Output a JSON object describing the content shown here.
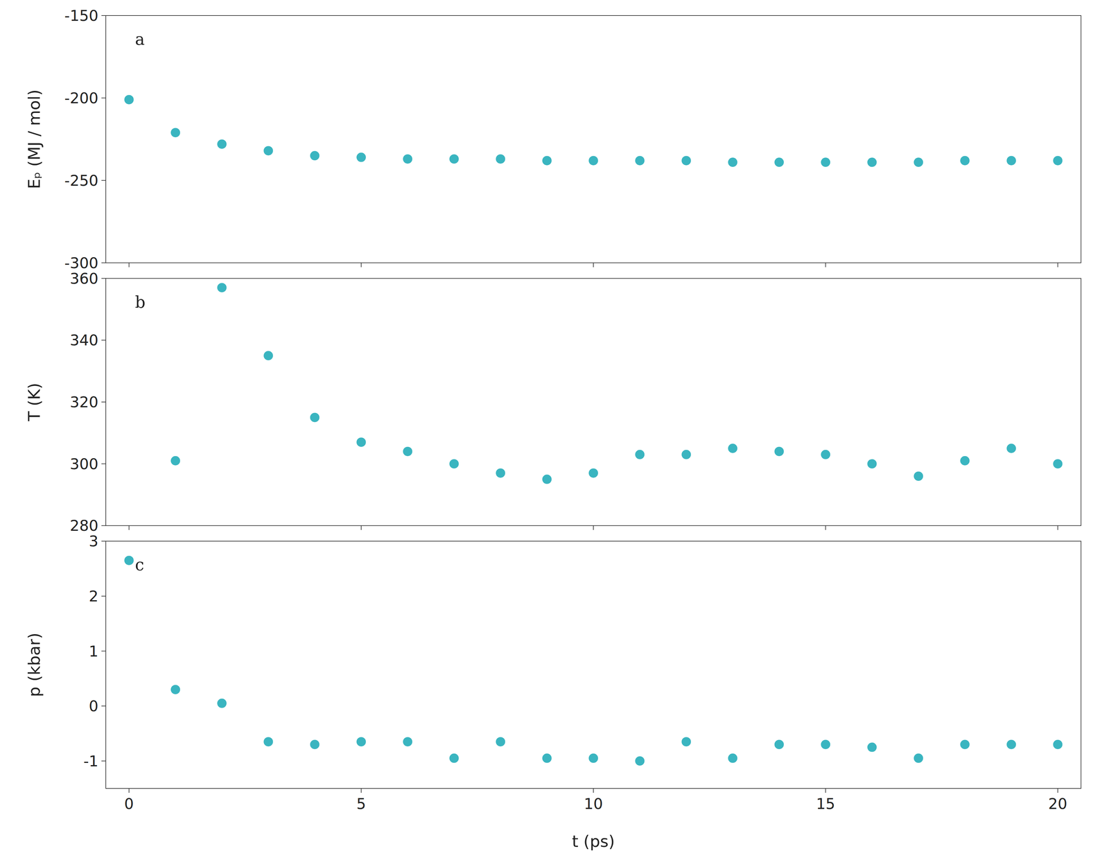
{
  "chart_data": [
    {
      "type": "scatter",
      "ylabel": "Eₚ (MJ / mol)",
      "annotations": [
        "a"
      ],
      "x": [
        0,
        1,
        2,
        3,
        4,
        5,
        6,
        7,
        8,
        9,
        10,
        11,
        12,
        13,
        14,
        15,
        16,
        17,
        18,
        19,
        20
      ],
      "values": [
        -201,
        -221,
        -228,
        -232,
        -235,
        -236,
        -237,
        -237,
        -237,
        -238,
        -238,
        -238,
        -238,
        -239,
        -239,
        -239,
        -239,
        -239,
        -238,
        -238,
        -238
      ],
      "color": "#3ab5c0",
      "xlim": [
        -0.5,
        20.5
      ],
      "xticks": [
        0,
        5,
        10,
        15,
        20
      ],
      "ylim": [
        -300,
        -150
      ],
      "yticks": [
        -300,
        -250,
        -200,
        -150
      ],
      "grid": false,
      "tick_labels": "y"
    },
    {
      "type": "scatter",
      "ylabel": "T (K)",
      "annotations": [
        "b"
      ],
      "x": [
        1,
        2,
        3,
        4,
        5,
        6,
        7,
        8,
        9,
        10,
        11,
        12,
        13,
        14,
        15,
        16,
        17,
        18,
        19,
        20
      ],
      "values": [
        301,
        357,
        335,
        315,
        307,
        304,
        300,
        297,
        295,
        297,
        303,
        303,
        305,
        304,
        303,
        300,
        296,
        301,
        305,
        300
      ],
      "color": "#3ab5c0",
      "xlim": [
        -0.5,
        20.5
      ],
      "xticks": [
        0,
        5,
        10,
        15,
        20
      ],
      "ylim": [
        280,
        360
      ],
      "yticks": [
        280,
        300,
        320,
        340,
        360
      ],
      "grid": false,
      "tick_labels": "y"
    },
    {
      "type": "scatter",
      "xlabel": "t (ps)",
      "ylabel": "p (kbar)",
      "annotations": [
        "c"
      ],
      "x": [
        0,
        1,
        2,
        3,
        4,
        5,
        6,
        7,
        8,
        9,
        10,
        11,
        12,
        13,
        14,
        15,
        16,
        17,
        18,
        19,
        20
      ],
      "values": [
        2.65,
        0.3,
        0.05,
        -0.65,
        -0.7,
        -0.65,
        -0.65,
        -0.95,
        -0.65,
        -0.95,
        -0.95,
        -1.0,
        -0.65,
        -0.95,
        -0.7,
        -0.7,
        -0.75,
        -0.95,
        -0.7,
        -0.7,
        -0.7
      ],
      "color": "#3ab5c0",
      "xlim": [
        -0.5,
        20.5
      ],
      "xticks": [
        0,
        5,
        10,
        15,
        20
      ],
      "ylim": [
        -1.5,
        3.0
      ],
      "yticks": [
        -1,
        0,
        1,
        2,
        3
      ],
      "grid": false
    }
  ]
}
